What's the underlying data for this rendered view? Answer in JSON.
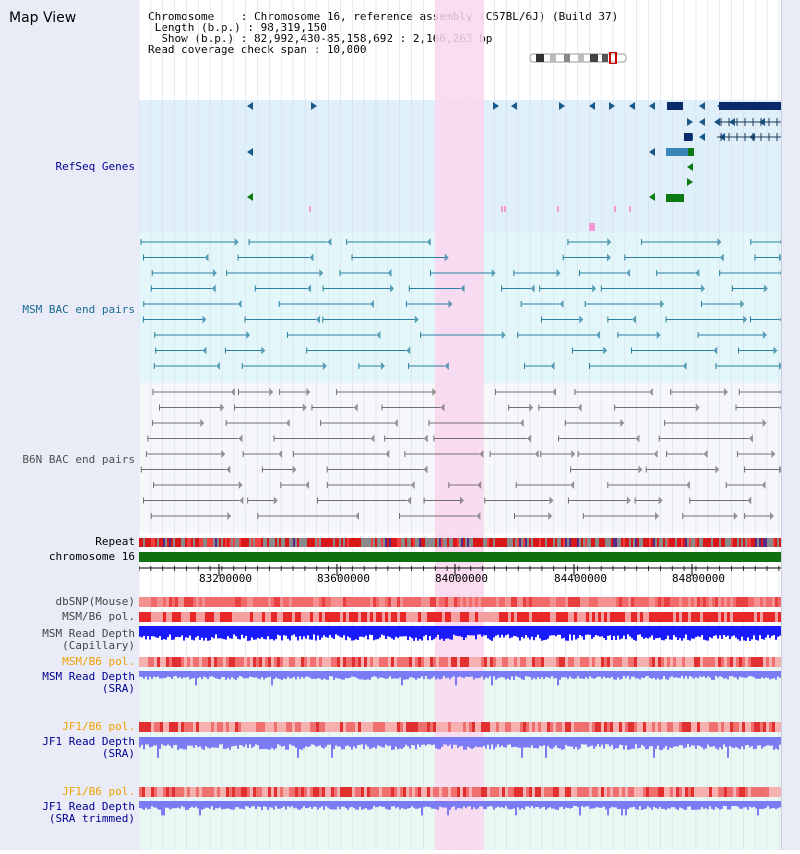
{
  "title": "Map View",
  "header": {
    "chromosome_key": "Chromosome    : ",
    "chromosome": "Chromosome 16, reference assembly (C57BL/6J) (Build 37)",
    "length_key": " Length (b.p.) : ",
    "length": "98,319,150",
    "show_key": "  Show (b.p.) : ",
    "show": "82,992,430-85,158,692 : 2,166,263 bp",
    "span_key": "Read coverage check span : ",
    "span": "10,000"
  },
  "colors": {
    "refseq_bg": "#dff0fb",
    "msm_bac_bg": "#e3f7fa",
    "b6n_bac_bg": "#f6f7fa",
    "highlight": "#fad7ef",
    "track_blue": "#3a6ea5",
    "track_teal": "#2a7fa0",
    "track_gray": "#6c6c6c",
    "coverage_blue": "#1a1aff",
    "coverage_light_blue": "#7b7cf5",
    "snp_red": "#f26a6a",
    "chromosome_green": "#107010",
    "orange_label": "#f0a000"
  },
  "tracks": {
    "refseq": "RefSeq Genes",
    "msm_bac": "MSM BAC end pairs",
    "b6n_bac": "B6N BAC end pairs",
    "repeat": "Repeat",
    "chrom": "chromosome 16",
    "dbsnp": "dbSNP(Mouse)",
    "msm_pol": "MSM/B6 pol.",
    "msm_depth_cap_1": "MSM Read Depth",
    "msm_depth_cap_2": "(Capillary)",
    "msm_pol_sra": "MSM/B6 pol.",
    "msm_depth_sra_1": "MSM Read Depth",
    "msm_depth_sra_2": "(SRA)",
    "jf1_pol": "JF1/B6 pol.",
    "jf1_depth_1": "JF1 Read Depth",
    "jf1_depth_2": "(SRA)",
    "jf1_pol_trim": "JF1/B6 pol.",
    "jf1_trim_1": "JF1 Read Depth",
    "jf1_trim_2": "(SRA trimmed)"
  },
  "axis": {
    "ticks": [
      "83200000",
      "83600000",
      "84000000",
      "84400000",
      "84800000"
    ]
  }
}
